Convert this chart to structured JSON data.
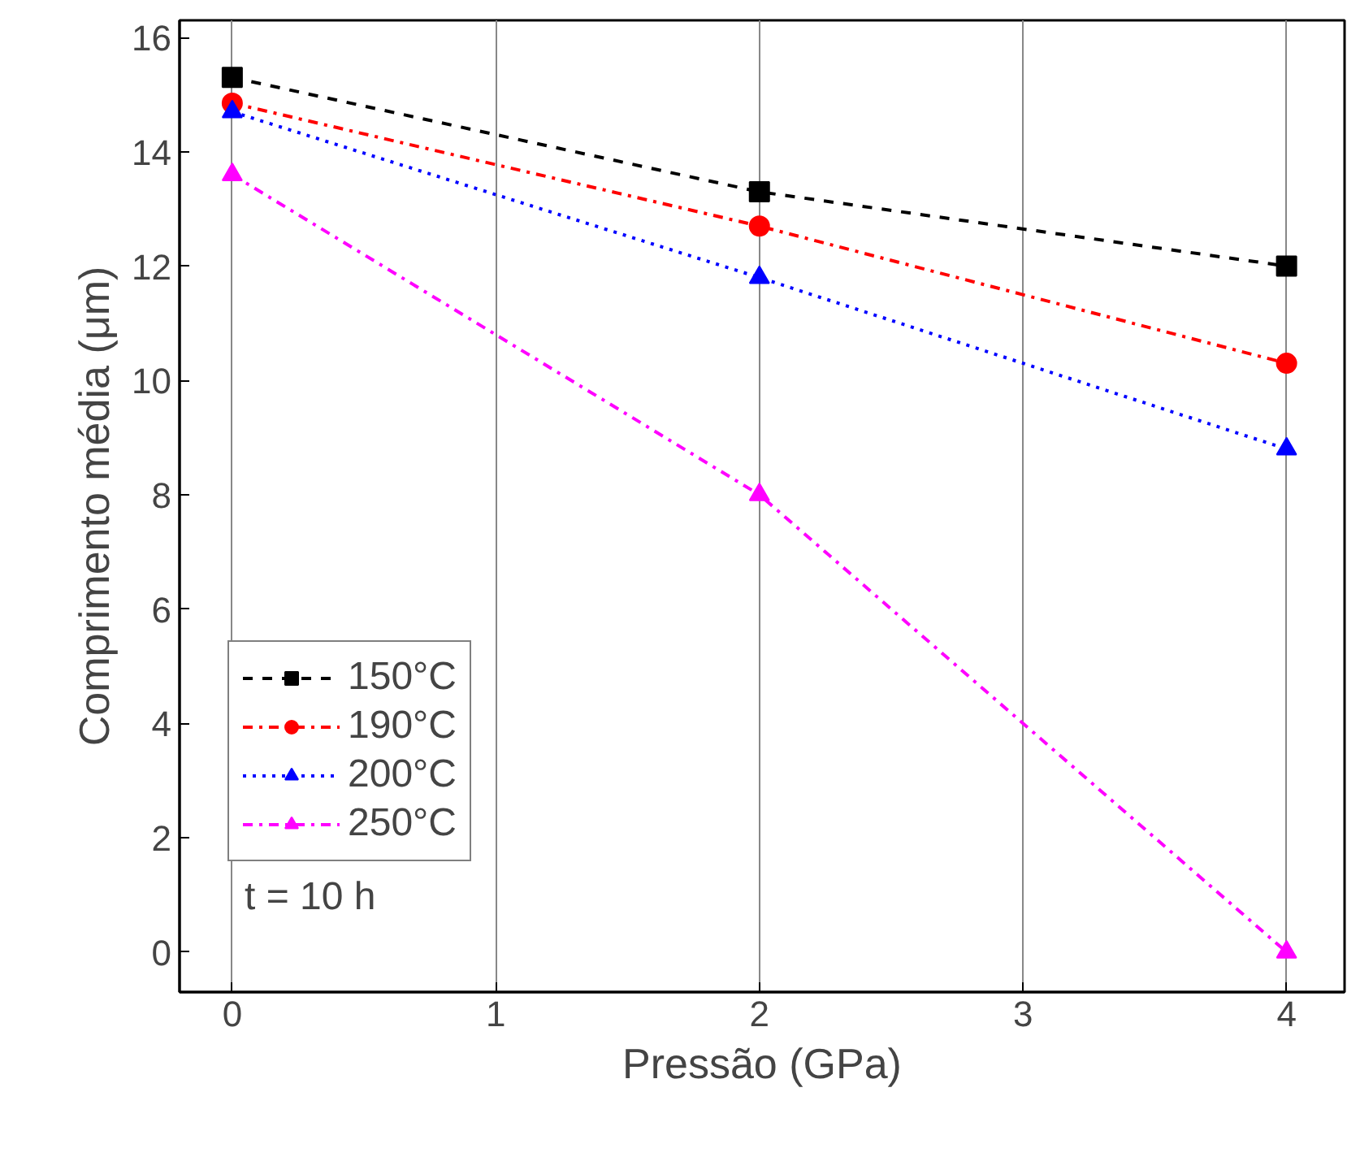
{
  "chart_data": {
    "type": "line",
    "xlabel": "Pressão (GPa)",
    "ylabel": "Comprimento média (μm)",
    "x": [
      0,
      2,
      4
    ],
    "series": [
      {
        "name": "150°C",
        "color": "#000000",
        "marker": "square",
        "line_style": "dashed",
        "values": [
          15.3,
          13.3,
          12.0
        ]
      },
      {
        "name": "190°C",
        "color": "#ff0000",
        "marker": "circle",
        "line_style": "dashdot",
        "values": [
          14.85,
          12.7,
          10.3
        ]
      },
      {
        "name": "200°C",
        "color": "#0000ff",
        "marker": "triangle",
        "line_style": "dotted",
        "values": [
          14.7,
          11.8,
          8.8
        ]
      },
      {
        "name": "250°C",
        "color": "#ff00ff",
        "marker": "triangle",
        "line_style": "dashdot",
        "values": [
          13.6,
          8.0,
          0.0
        ]
      }
    ],
    "xlim": [
      -0.2,
      4.22
    ],
    "ylim": [
      -0.7,
      16.3
    ],
    "xticks": [
      0,
      1,
      2,
      3,
      4
    ],
    "yticks": [
      0,
      2,
      4,
      6,
      8,
      10,
      12,
      14,
      16
    ],
    "grid": "x",
    "legend": "bottom left",
    "annotations": [
      "t = 10 h"
    ]
  }
}
